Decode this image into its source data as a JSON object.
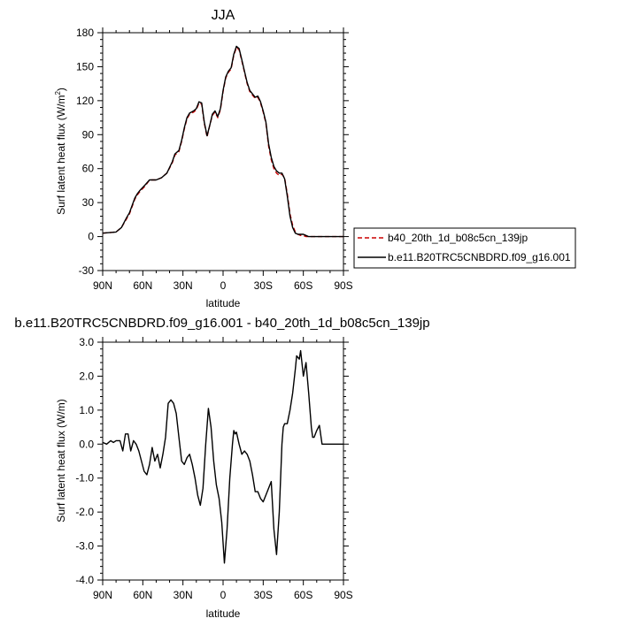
{
  "chart_data": [
    {
      "type": "line",
      "title": "JJA",
      "xlabel": "latitude",
      "ylabel_main": "Surf latent heat flux (W/m",
      "ylabel_sup": "2",
      "ylabel_close": ")",
      "xlim": [
        -90,
        90
      ],
      "ylim": [
        -30,
        180
      ],
      "x_ticks": [
        -90,
        -60,
        -30,
        0,
        30,
        60,
        90
      ],
      "x_tick_labels": [
        "90N",
        "60N",
        "30N",
        "0",
        "30S",
        "60S",
        "90S"
      ],
      "y_ticks": [
        -30,
        0,
        30,
        60,
        90,
        120,
        150,
        180
      ],
      "y_tick_labels": [
        "-30",
        "0",
        "30",
        "60",
        "90",
        "120",
        "150",
        "180"
      ],
      "legend_position": "right",
      "series": [
        {
          "name": "b40_20th_1d_b08c5cn_139jp",
          "color": "#cc0000",
          "dash": "dashed",
          "x": [
            -90,
            -80,
            -76,
            -72,
            -70,
            -66,
            -64,
            -62,
            -58,
            -55,
            -50,
            -46,
            -42,
            -38,
            -36,
            -33,
            -31,
            -29,
            -27,
            -25,
            -22,
            -20,
            -18,
            -16,
            -14,
            -12,
            -10,
            -8,
            -6,
            -4,
            -2,
            0,
            2,
            4,
            6,
            8,
            10,
            12,
            14,
            16,
            18,
            20,
            22,
            24,
            26,
            28,
            30,
            32,
            34,
            36,
            38,
            40,
            42,
            44,
            46,
            48,
            50,
            52,
            54,
            56,
            58,
            60,
            62,
            64,
            66,
            68,
            70,
            72,
            76,
            80,
            85,
            90
          ],
          "y": [
            3,
            4,
            8,
            16,
            20,
            33,
            37,
            40,
            45,
            50,
            50,
            52,
            56,
            65,
            72,
            75,
            84,
            95,
            104,
            108,
            110,
            112,
            118,
            117,
            100,
            88,
            98,
            107,
            110,
            105,
            112,
            128,
            140,
            145,
            148,
            160,
            167,
            165,
            155,
            145,
            135,
            128,
            125,
            122,
            123,
            118,
            110,
            100,
            80,
            68,
            60,
            56,
            54,
            55,
            52,
            38,
            20,
            10,
            4,
            2,
            1,
            1,
            0,
            0,
            0,
            0,
            0,
            0,
            0,
            0,
            0,
            0
          ]
        },
        {
          "name": "b.e11.B20TRC5CNBDRD.f09_g16.001",
          "color": "#000000",
          "dash": "solid",
          "x": [
            -90,
            -80,
            -76,
            -72,
            -70,
            -66,
            -64,
            -62,
            -58,
            -55,
            -50,
            -46,
            -42,
            -38,
            -36,
            -33,
            -31,
            -29,
            -27,
            -25,
            -22,
            -20,
            -18,
            -16,
            -14,
            -12,
            -10,
            -8,
            -6,
            -4,
            -2,
            0,
            2,
            4,
            6,
            8,
            10,
            12,
            14,
            16,
            18,
            20,
            22,
            24,
            26,
            28,
            30,
            32,
            34,
            36,
            38,
            40,
            42,
            44,
            46,
            48,
            50,
            52,
            54,
            56,
            58,
            60,
            62,
            64,
            66,
            68,
            70,
            72,
            76,
            80,
            85,
            90
          ],
          "y": [
            3,
            4,
            8,
            17,
            21,
            34,
            38,
            41,
            46,
            50,
            50,
            52,
            56,
            66,
            73,
            76,
            85,
            96,
            105,
            109,
            111,
            113,
            119,
            118,
            101,
            89,
            98,
            108,
            111,
            106,
            113,
            129,
            141,
            146,
            149,
            161,
            168,
            166,
            156,
            146,
            136,
            129,
            126,
            123,
            124,
            119,
            111,
            101,
            82,
            70,
            62,
            58,
            56,
            56,
            51,
            36,
            18,
            8,
            3,
            2,
            2,
            2,
            1,
            0,
            0,
            0,
            0,
            0,
            0,
            0,
            0,
            0
          ]
        }
      ]
    },
    {
      "type": "line",
      "title": "b.e11.B20TRC5CNBDRD.f09_g16.001 - b40_20th_1d_b08c5cn_139jp",
      "xlabel": "latitude",
      "ylabel": "Surf latent heat flux (W/m)",
      "xlim": [
        -90,
        90
      ],
      "ylim": [
        -4,
        3
      ],
      "x_ticks": [
        -90,
        -60,
        -30,
        0,
        30,
        60,
        90
      ],
      "x_tick_labels": [
        "90N",
        "60N",
        "30N",
        "0",
        "30S",
        "60S",
        "90S"
      ],
      "y_ticks": [
        -4,
        -3,
        -2,
        -1,
        0,
        1,
        2,
        3
      ],
      "y_tick_labels": [
        "-4.0",
        "-3.0",
        "-2.0",
        "-1.0",
        "0.0",
        "1.0",
        "2.0",
        "3.0"
      ],
      "series": [
        {
          "color": "#000000",
          "x": [
            -90,
            -87,
            -84,
            -82,
            -80,
            -77,
            -75,
            -73,
            -71,
            -69,
            -67,
            -65,
            -63,
            -61,
            -59,
            -57,
            -55,
            -53,
            -51,
            -49,
            -47,
            -45,
            -43,
            -41,
            -39,
            -37,
            -35,
            -33,
            -31,
            -29,
            -27,
            -25,
            -23,
            -21,
            -19,
            -17,
            -15,
            -13,
            -11,
            -9,
            -7,
            -5,
            -3,
            -1,
            1,
            3,
            5,
            7,
            8,
            9,
            10,
            12,
            14,
            16,
            18,
            20,
            22,
            24,
            26,
            28,
            30,
            32,
            34,
            36,
            38,
            40,
            42,
            44,
            45,
            46,
            48,
            50,
            52,
            54,
            55,
            57,
            58,
            60,
            62,
            64,
            66,
            67,
            68,
            70,
            72,
            74,
            76,
            78,
            80,
            84,
            88,
            90
          ],
          "y": [
            0.05,
            0.0,
            0.1,
            0.05,
            0.1,
            0.1,
            -0.2,
            0.3,
            0.3,
            -0.2,
            0.1,
            0.0,
            -0.2,
            -0.5,
            -0.8,
            -0.9,
            -0.6,
            -0.1,
            -0.5,
            -0.3,
            -0.7,
            -0.3,
            0.2,
            1.2,
            1.3,
            1.2,
            0.9,
            0.2,
            -0.5,
            -0.6,
            -0.4,
            -0.3,
            -0.6,
            -1.0,
            -1.5,
            -1.8,
            -1.3,
            0.0,
            1.05,
            0.5,
            -0.5,
            -1.2,
            -1.6,
            -2.3,
            -3.5,
            -2.5,
            -1.0,
            0.0,
            0.4,
            0.3,
            0.35,
            0.0,
            -0.3,
            -0.2,
            -0.3,
            -0.5,
            -0.9,
            -1.4,
            -1.4,
            -1.6,
            -1.7,
            -1.5,
            -1.3,
            -1.1,
            -2.5,
            -3.25,
            -2.0,
            0.0,
            0.5,
            0.6,
            0.6,
            1.0,
            1.5,
            2.2,
            2.6,
            2.5,
            2.75,
            2.0,
            2.4,
            1.5,
            0.5,
            0.2,
            0.2,
            0.4,
            0.55,
            0.0,
            0.0,
            0.0,
            0.0,
            0.0,
            0.0,
            0.0
          ]
        }
      ]
    }
  ]
}
